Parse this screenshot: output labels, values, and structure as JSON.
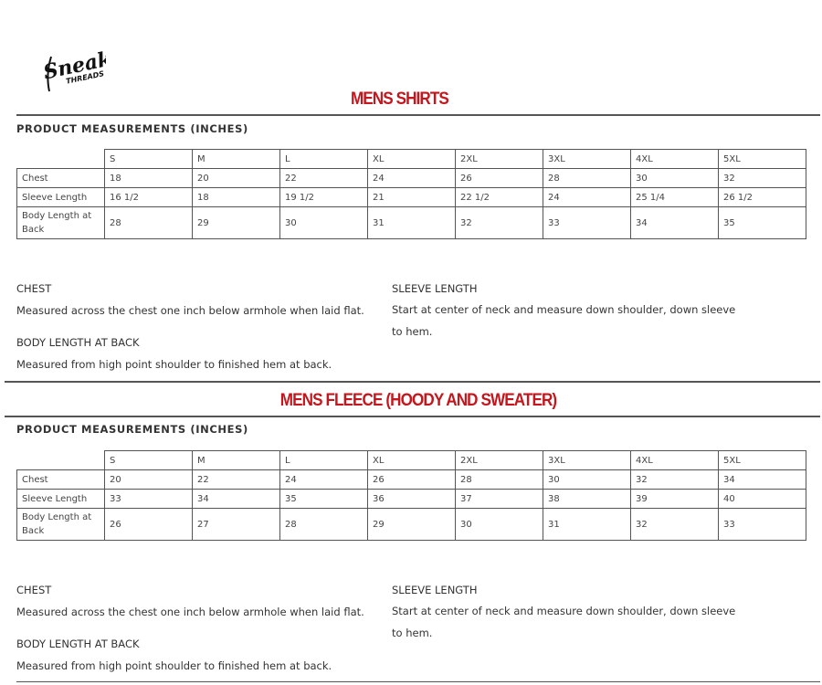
{
  "brand": {
    "logo_text": "Sneaker THREADS"
  },
  "sections": [
    {
      "title": "MENS SHIRTS",
      "subtitle": "PRODUCT MEASUREMENTS (INCHES)",
      "table": {
        "sizes": [
          "S",
          "M",
          "L",
          "XL",
          "2XL",
          "3XL",
          "4XL",
          "5XL"
        ],
        "rows": [
          {
            "label": "Chest",
            "values": [
              "18",
              "20",
              "22",
              "24",
              "26",
              "28",
              "30",
              "32"
            ]
          },
          {
            "label": "Sleeve Length",
            "values": [
              "16 1/2",
              "18",
              "19 1/2",
              "21",
              "22 1/2",
              "24",
              "25 1/4",
              "26 1/2"
            ]
          },
          {
            "label": "Body Length at Back",
            "values": [
              "28",
              "29",
              "30",
              "31",
              "32",
              "33",
              "34",
              "35"
            ]
          }
        ]
      },
      "notes": {
        "chest_h": "CHEST",
        "chest_t": "Measured across the chest one inch below armhole when laid flat.",
        "body_h": "BODY LENGTH AT BACK",
        "body_t": "Measured from high point shoulder to finished hem at back.",
        "sleeve_h": "SLEEVE LENGTH",
        "sleeve_t": "Start at center of neck and measure down shoulder, down sleeve to hem."
      }
    },
    {
      "title": "MENS FLEECE (HOODY AND SWEATER)",
      "subtitle": "PRODUCT MEASUREMENTS (INCHES)",
      "table": {
        "sizes": [
          "S",
          "M",
          "L",
          "XL",
          "2XL",
          "3XL",
          "4XL",
          "5XL"
        ],
        "rows": [
          {
            "label": "Chest",
            "values": [
              "20",
              "22",
              "24",
              "26",
              "28",
              "30",
              "32",
              "34"
            ]
          },
          {
            "label": "Sleeve Length",
            "values": [
              "33",
              "34",
              "35",
              "36",
              "37",
              "38",
              "39",
              "40"
            ]
          },
          {
            "label": "Body Length at Back",
            "values": [
              "26",
              "27",
              "28",
              "29",
              "30",
              "31",
              "32",
              "33"
            ]
          }
        ]
      },
      "notes": {
        "chest_h": "CHEST",
        "chest_t": "Measured across the chest one inch below armhole when laid flat.",
        "body_h": "BODY LENGTH AT BACK",
        "body_t": "Measured from high point shoulder to finished hem at back.",
        "sleeve_h": "SLEEVE LENGTH",
        "sleeve_t": "Start at center of neck and measure down shoulder, down sleeve to hem."
      }
    }
  ]
}
